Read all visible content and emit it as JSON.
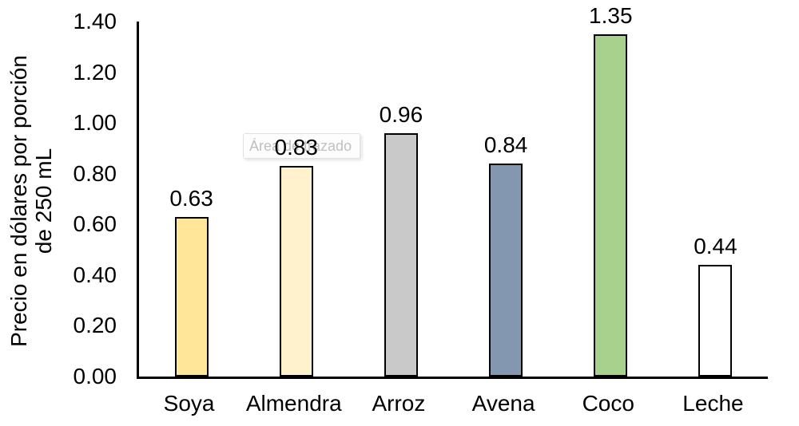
{
  "chart_data": {
    "type": "bar",
    "title": "",
    "categories": [
      "Soya",
      "Almendra",
      "Arroz",
      "Avena",
      "Coco",
      "Leche"
    ],
    "values": [
      0.63,
      0.83,
      0.96,
      0.84,
      1.35,
      0.44
    ],
    "value_labels": [
      "0.63",
      "0.83",
      "0.96",
      "0.84",
      "1.35",
      "0.44"
    ],
    "bar_colors": [
      "#FFE699",
      "#FFF2CC",
      "#C9C9C9",
      "#8497B0",
      "#A9D18E",
      "#FFFFFF"
    ],
    "bar_border_color": "#000000",
    "xlabel": "",
    "ylabel": "Precio en dólares por porción de 250 mL",
    "ylabel_line1": "Precio en dólares por porción",
    "ylabel_line2": "de 250 mL",
    "ylim": [
      0.0,
      1.4
    ],
    "yticks": [
      {
        "value": 0.0,
        "label": "0.00"
      },
      {
        "value": 0.2,
        "label": "0.20"
      },
      {
        "value": 0.4,
        "label": "0.40"
      },
      {
        "value": 0.6,
        "label": "0.60"
      },
      {
        "value": 0.8,
        "label": "0.80"
      },
      {
        "value": 1.0,
        "label": "1.00"
      },
      {
        "value": 1.2,
        "label": "1.20"
      },
      {
        "value": 1.4,
        "label": "1.40"
      }
    ],
    "grid": false,
    "legend": "none",
    "axis_color": "#000000",
    "text_color": "#000000"
  },
  "tooltip": {
    "label": "Área de trazado"
  }
}
